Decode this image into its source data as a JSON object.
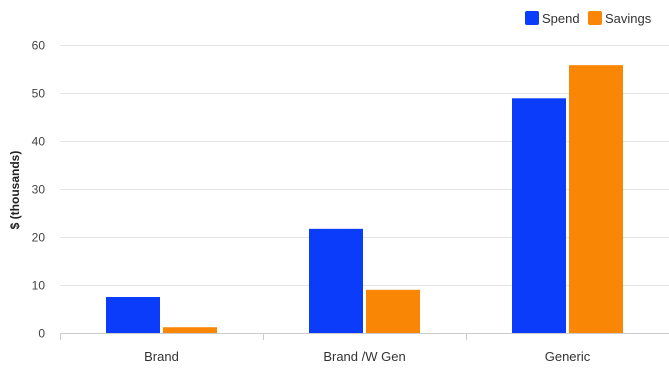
{
  "chart_data": {
    "type": "bar",
    "title": "",
    "xlabel": "",
    "ylabel": "$ (thousands)",
    "categories": [
      "Brand",
      "Brand /W Gen",
      "Generic"
    ],
    "series": [
      {
        "name": "Spend",
        "color": "#0b3cfa",
        "values": [
          7.5,
          21.7,
          48.9
        ]
      },
      {
        "name": "Savings",
        "color": "#fa8605",
        "values": [
          1.2,
          9.0,
          55.8
        ]
      }
    ],
    "ylim": [
      0,
      60
    ],
    "yticks": [
      0,
      10,
      20,
      30,
      40,
      50,
      60
    ],
    "grid": true,
    "legend": "top-right"
  }
}
